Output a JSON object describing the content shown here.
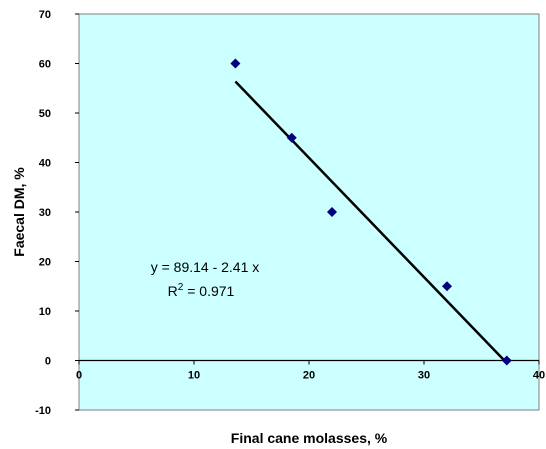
{
  "chart_data": {
    "type": "scatter",
    "title": "",
    "xlabel": "Final cane molasses, %",
    "ylabel": "Faecal DM, %",
    "xlim": [
      0,
      40
    ],
    "ylim": [
      -10,
      70
    ],
    "xticks": [
      0,
      10,
      20,
      30,
      40
    ],
    "yticks": [
      -10,
      0,
      10,
      20,
      30,
      40,
      50,
      60,
      70
    ],
    "grid": false,
    "legend": "none",
    "plot_background": "#ccffff",
    "marker_color": "#000080",
    "series": [
      {
        "x": [
          13.6,
          18.5,
          22.0,
          32.0,
          37.2
        ],
        "y": [
          60,
          45,
          30,
          15,
          0
        ]
      }
    ],
    "trendline": {
      "intercept": 89.14,
      "slope": -2.41,
      "x_range": [
        13.6,
        37.0
      ],
      "color": "#000000"
    },
    "annotations": {
      "equation": "y = 89.14 - 2.41 x",
      "r_squared_prefix": "R",
      "r_squared_sup": "2",
      "r_squared_value": " = 0.971"
    }
  }
}
